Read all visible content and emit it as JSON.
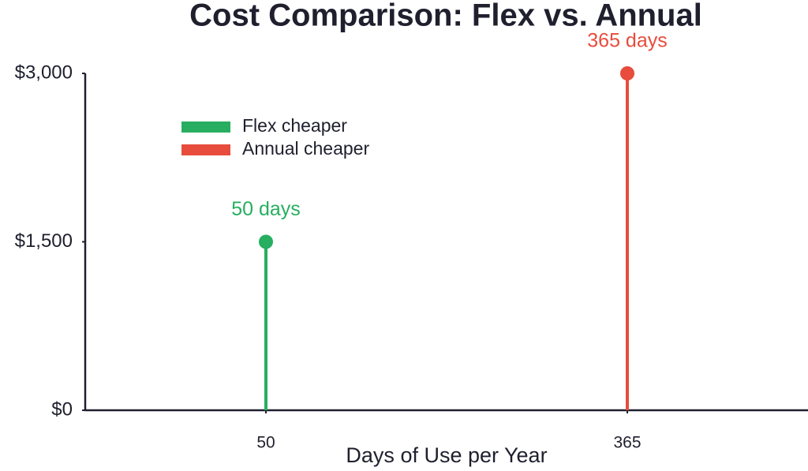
{
  "chart_data": {
    "type": "lollipop",
    "title": "Cost Comparison: Flex vs. Annual",
    "x_label": "Days of Use per Year",
    "series": [
      {
        "name": "Flex cheaper",
        "color": "#27ae60",
        "x": [
          50
        ],
        "values": [
          1500
        ],
        "x_labels": [
          "50 days"
        ]
      },
      {
        "name": "Annual cheaper",
        "color": "#e74c3c",
        "x": [
          365
        ],
        "values": [
          3000
        ],
        "x_labels": [
          "365 days"
        ]
      }
    ],
    "xlim": [
      -107.5,
      522.5
    ],
    "xticks": [
      50,
      365
    ],
    "ylim": [
      0,
      3000
    ],
    "yticks": [
      {
        "value": 0,
        "label": "$0"
      },
      {
        "value": 1500,
        "label": "$1,500"
      },
      {
        "value": 3000,
        "label": "$3,000"
      }
    ],
    "legend": "upper left"
  }
}
